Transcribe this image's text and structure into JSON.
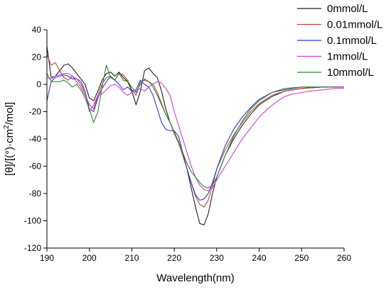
{
  "chart_data": {
    "type": "line",
    "title": "",
    "xlabel": "Wavelength(nm)",
    "ylabel": "[θ]/[(°)·cm²/mol]",
    "ylabel_parts": {
      "main": "[θ]/[(°)·cm",
      "sup": "2",
      "tail": "/mol]"
    },
    "xlim": [
      190,
      260
    ],
    "ylim": [
      -120,
      40
    ],
    "x_ticks": [
      190,
      200,
      210,
      220,
      230,
      240,
      250,
      260
    ],
    "y_ticks": [
      40,
      20,
      0,
      -20,
      -40,
      -60,
      -80,
      -100,
      -120
    ],
    "grid": false,
    "legend_position": "top-right",
    "series": [
      {
        "name": "0mmol/L",
        "color": "#222222",
        "points": [
          [
            190,
            28
          ],
          [
            191,
            5
          ],
          [
            192,
            6
          ],
          [
            193,
            10
          ],
          [
            194,
            14
          ],
          [
            195,
            15
          ],
          [
            196,
            12
          ],
          [
            197,
            8
          ],
          [
            198,
            4
          ],
          [
            199,
            0
          ],
          [
            200,
            -10
          ],
          [
            201,
            -12
          ],
          [
            202,
            -5
          ],
          [
            203,
            3
          ],
          [
            204,
            8
          ],
          [
            205,
            9
          ],
          [
            206,
            6
          ],
          [
            207,
            9
          ],
          [
            208,
            5
          ],
          [
            209,
            2
          ],
          [
            210,
            -5
          ],
          [
            211,
            -15
          ],
          [
            212,
            -5
          ],
          [
            213,
            10
          ],
          [
            214,
            12
          ],
          [
            215,
            8
          ],
          [
            216,
            5
          ],
          [
            217,
            -5
          ],
          [
            218,
            -18
          ],
          [
            219,
            -28
          ],
          [
            220,
            -35
          ],
          [
            221,
            -42
          ],
          [
            222,
            -52
          ],
          [
            223,
            -62
          ],
          [
            224,
            -76
          ],
          [
            225,
            -90
          ],
          [
            226,
            -102
          ],
          [
            227,
            -103
          ],
          [
            228,
            -95
          ],
          [
            229,
            -80
          ],
          [
            230,
            -68
          ],
          [
            232,
            -52
          ],
          [
            234,
            -40
          ],
          [
            236,
            -30
          ],
          [
            238,
            -22
          ],
          [
            240,
            -15
          ],
          [
            243,
            -9
          ],
          [
            246,
            -5
          ],
          [
            250,
            -3
          ],
          [
            255,
            -2
          ],
          [
            260,
            -2
          ]
        ]
      },
      {
        "name": "0.01mmol/L",
        "color": "#c0443a",
        "points": [
          [
            190,
            22
          ],
          [
            191,
            14
          ],
          [
            192,
            16
          ],
          [
            193,
            10
          ],
          [
            194,
            5
          ],
          [
            195,
            3
          ],
          [
            196,
            6
          ],
          [
            197,
            2
          ],
          [
            198,
            -2
          ],
          [
            199,
            -8
          ],
          [
            200,
            -15
          ],
          [
            201,
            -18
          ],
          [
            202,
            -8
          ],
          [
            203,
            0
          ],
          [
            204,
            5
          ],
          [
            205,
            6
          ],
          [
            206,
            3
          ],
          [
            207,
            8
          ],
          [
            208,
            7
          ],
          [
            209,
            3
          ],
          [
            210,
            -4
          ],
          [
            211,
            -8
          ],
          [
            212,
            2
          ],
          [
            213,
            3
          ],
          [
            214,
            2
          ],
          [
            215,
            0
          ],
          [
            216,
            -6
          ],
          [
            217,
            -14
          ],
          [
            218,
            -22
          ],
          [
            219,
            -28
          ],
          [
            220,
            -36
          ],
          [
            221,
            -43
          ],
          [
            222,
            -52
          ],
          [
            223,
            -62
          ],
          [
            224,
            -72
          ],
          [
            225,
            -82
          ],
          [
            226,
            -88
          ],
          [
            227,
            -90
          ],
          [
            228,
            -85
          ],
          [
            229,
            -74
          ],
          [
            230,
            -62
          ],
          [
            232,
            -48
          ],
          [
            234,
            -37
          ],
          [
            236,
            -28
          ],
          [
            238,
            -20
          ],
          [
            240,
            -14
          ],
          [
            243,
            -8
          ],
          [
            246,
            -5
          ],
          [
            250,
            -3
          ],
          [
            255,
            -2
          ],
          [
            260,
            -2
          ]
        ]
      },
      {
        "name": "0.1mmol/L",
        "color": "#2f3bd6",
        "points": [
          [
            190,
            -12
          ],
          [
            191,
            2
          ],
          [
            192,
            5
          ],
          [
            193,
            6
          ],
          [
            194,
            7
          ],
          [
            195,
            6
          ],
          [
            196,
            4
          ],
          [
            197,
            4
          ],
          [
            198,
            2
          ],
          [
            199,
            -5
          ],
          [
            200,
            -18
          ],
          [
            201,
            -20
          ],
          [
            202,
            -10
          ],
          [
            203,
            -3
          ],
          [
            204,
            2
          ],
          [
            205,
            6
          ],
          [
            206,
            3
          ],
          [
            207,
            0
          ],
          [
            208,
            -4
          ],
          [
            209,
            -2
          ],
          [
            210,
            -5
          ],
          [
            211,
            -4
          ],
          [
            212,
            3
          ],
          [
            213,
            0
          ],
          [
            214,
            -2
          ],
          [
            215,
            -8
          ],
          [
            216,
            -18
          ],
          [
            217,
            -28
          ],
          [
            218,
            -33
          ],
          [
            219,
            -34
          ],
          [
            220,
            -34
          ],
          [
            221,
            -38
          ],
          [
            222,
            -50
          ],
          [
            223,
            -62
          ],
          [
            224,
            -72
          ],
          [
            225,
            -81
          ],
          [
            226,
            -85
          ],
          [
            227,
            -84
          ],
          [
            228,
            -80
          ],
          [
            229,
            -72
          ],
          [
            230,
            -62
          ],
          [
            232,
            -45
          ],
          [
            234,
            -33
          ],
          [
            236,
            -24
          ],
          [
            238,
            -17
          ],
          [
            240,
            -11
          ],
          [
            243,
            -6
          ],
          [
            246,
            -4
          ],
          [
            250,
            -2
          ],
          [
            255,
            -2
          ],
          [
            260,
            -2
          ]
        ]
      },
      {
        "name": "1mmol/L",
        "color": "#d43ed4",
        "points": [
          [
            190,
            5
          ],
          [
            191,
            4
          ],
          [
            192,
            6
          ],
          [
            193,
            7
          ],
          [
            194,
            8
          ],
          [
            195,
            8
          ],
          [
            196,
            6
          ],
          [
            197,
            4
          ],
          [
            198,
            0
          ],
          [
            199,
            -6
          ],
          [
            200,
            -20
          ],
          [
            201,
            -15
          ],
          [
            202,
            -8
          ],
          [
            203,
            -7
          ],
          [
            204,
            -4
          ],
          [
            205,
            -1
          ],
          [
            206,
            0
          ],
          [
            207,
            -2
          ],
          [
            208,
            -6
          ],
          [
            209,
            -8
          ],
          [
            210,
            -6
          ],
          [
            211,
            -5
          ],
          [
            212,
            -3
          ],
          [
            213,
            -5
          ],
          [
            214,
            -2
          ],
          [
            215,
            0
          ],
          [
            216,
            2
          ],
          [
            217,
            1
          ],
          [
            218,
            -3
          ],
          [
            219,
            -8
          ],
          [
            220,
            -20
          ],
          [
            221,
            -30
          ],
          [
            222,
            -40
          ],
          [
            223,
            -50
          ],
          [
            224,
            -60
          ],
          [
            225,
            -68
          ],
          [
            226,
            -74
          ],
          [
            227,
            -77
          ],
          [
            228,
            -78
          ],
          [
            229,
            -76
          ],
          [
            230,
            -70
          ],
          [
            232,
            -60
          ],
          [
            234,
            -50
          ],
          [
            236,
            -40
          ],
          [
            238,
            -32
          ],
          [
            240,
            -24
          ],
          [
            242,
            -18
          ],
          [
            244,
            -13
          ],
          [
            246,
            -9
          ],
          [
            248,
            -7
          ],
          [
            250,
            -6
          ],
          [
            252,
            -5
          ],
          [
            255,
            -4
          ],
          [
            258,
            -3
          ],
          [
            260,
            -3
          ]
        ]
      },
      {
        "name": "10mmol/L",
        "color": "#2e8b2e",
        "points": [
          [
            190,
            8
          ],
          [
            191,
            2
          ],
          [
            192,
            2
          ],
          [
            193,
            2
          ],
          [
            194,
            3
          ],
          [
            195,
            1
          ],
          [
            196,
            -2
          ],
          [
            197,
            0
          ],
          [
            198,
            -4
          ],
          [
            199,
            -10
          ],
          [
            200,
            -18
          ],
          [
            201,
            -28
          ],
          [
            202,
            -20
          ],
          [
            203,
            -2
          ],
          [
            204,
            14
          ],
          [
            205,
            5
          ],
          [
            206,
            3
          ],
          [
            207,
            8
          ],
          [
            208,
            3
          ],
          [
            209,
            2
          ],
          [
            210,
            -2
          ],
          [
            211,
            -6
          ],
          [
            212,
            0
          ],
          [
            213,
            4
          ],
          [
            214,
            2
          ],
          [
            215,
            -2
          ],
          [
            216,
            -8
          ],
          [
            217,
            -15
          ],
          [
            218,
            -22
          ],
          [
            219,
            -28
          ],
          [
            220,
            -35
          ],
          [
            221,
            -42
          ],
          [
            222,
            -50
          ],
          [
            223,
            -58
          ],
          [
            224,
            -64
          ],
          [
            225,
            -68
          ],
          [
            226,
            -72
          ],
          [
            227,
            -75
          ],
          [
            228,
            -76
          ],
          [
            229,
            -74
          ],
          [
            230,
            -68
          ],
          [
            232,
            -52
          ],
          [
            234,
            -38
          ],
          [
            236,
            -27
          ],
          [
            238,
            -18
          ],
          [
            240,
            -12
          ],
          [
            243,
            -6
          ],
          [
            246,
            -3
          ],
          [
            250,
            -2
          ],
          [
            255,
            -2
          ],
          [
            260,
            -2
          ]
        ]
      }
    ]
  }
}
